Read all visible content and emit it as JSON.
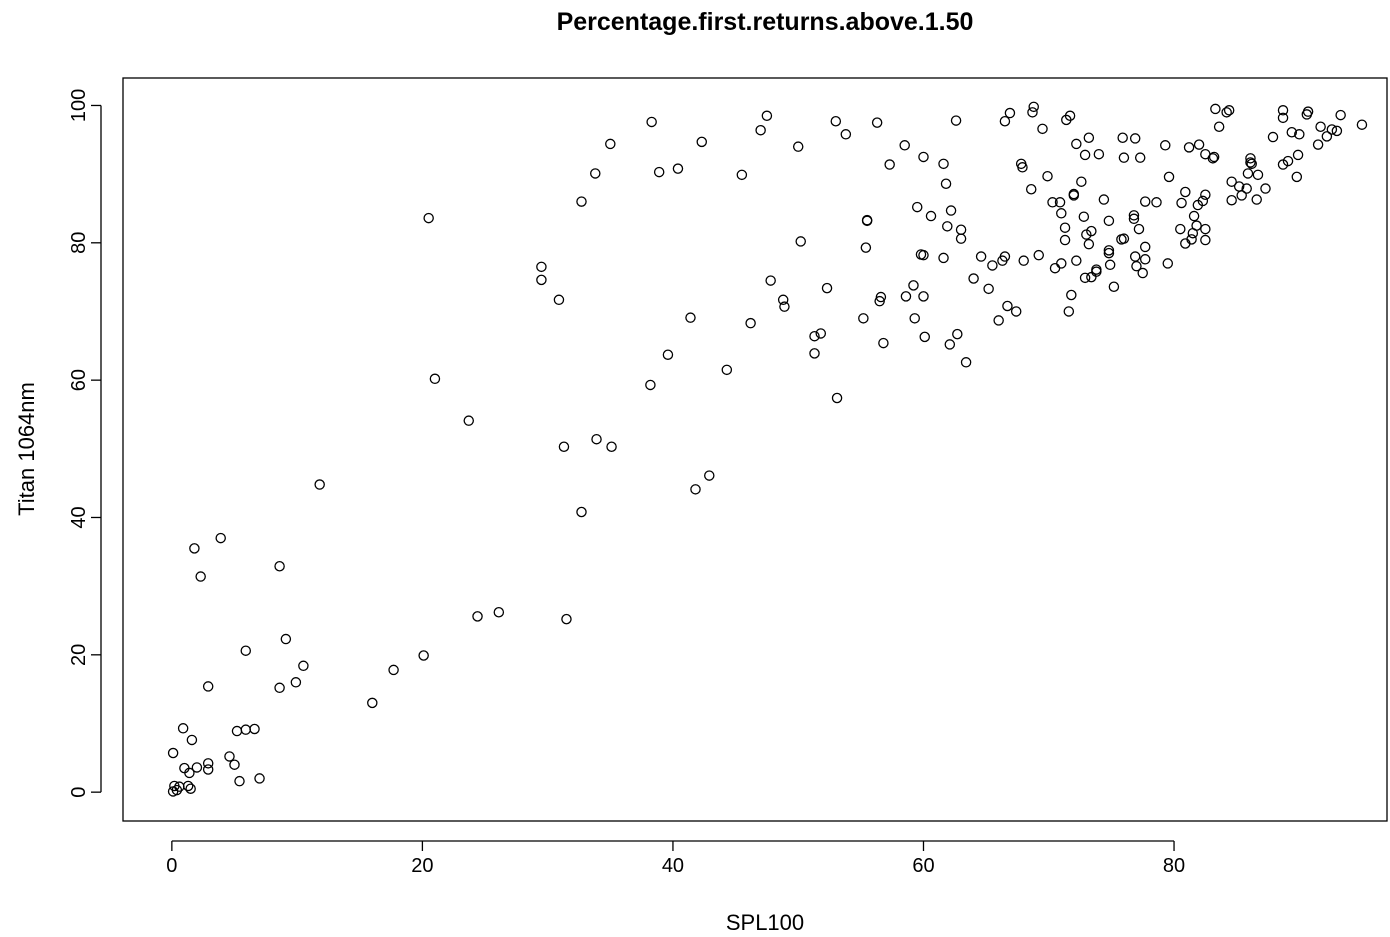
{
  "chart_data": {
    "type": "scatter",
    "title": "Percentage.first.returns.above.1.50",
    "xlabel": "SPL100",
    "ylabel": "Titan 1064nm",
    "xlim": [
      -3.9,
      97
    ],
    "ylim": [
      -4.2,
      104
    ],
    "x_ticks": [
      "0",
      "20",
      "40",
      "60",
      "80"
    ],
    "y_ticks": [
      "0",
      "20",
      "40",
      "60",
      "80",
      "100"
    ],
    "grid": false,
    "legend": "none",
    "marker": "open-circle",
    "points": [
      [
        0.1,
        0.1
      ],
      [
        0.4,
        0.3
      ],
      [
        0.6,
        0.8
      ],
      [
        0.2,
        0.9
      ],
      [
        1.3,
        0.9
      ],
      [
        1.5,
        0.5
      ],
      [
        1.0,
        3.5
      ],
      [
        1.4,
        2.8
      ],
      [
        2.0,
        3.6
      ],
      [
        2.9,
        4.2
      ],
      [
        2.9,
        3.3
      ],
      [
        4.6,
        5.2
      ],
      [
        5.0,
        4.0
      ],
      [
        5.4,
        1.6
      ],
      [
        7.0,
        2.0
      ],
      [
        0.1,
        5.7
      ],
      [
        0.9,
        9.3
      ],
      [
        1.6,
        7.6
      ],
      [
        5.2,
        8.9
      ],
      [
        5.9,
        9.1
      ],
      [
        6.6,
        9.2
      ],
      [
        2.9,
        15.4
      ],
      [
        5.9,
        20.6
      ],
      [
        8.6,
        15.2
      ],
      [
        9.9,
        16.0
      ],
      [
        9.1,
        22.3
      ],
      [
        10.5,
        18.4
      ],
      [
        1.8,
        35.5
      ],
      [
        2.3,
        31.4
      ],
      [
        3.9,
        37.0
      ],
      [
        8.6,
        32.9
      ],
      [
        11.8,
        44.8
      ],
      [
        16.0,
        13.0
      ],
      [
        17.7,
        17.8
      ],
      [
        20.1,
        19.9
      ],
      [
        20.5,
        83.6
      ],
      [
        21.0,
        60.2
      ],
      [
        23.7,
        54.1
      ],
      [
        24.4,
        25.6
      ],
      [
        26.1,
        26.2
      ],
      [
        29.5,
        76.5
      ],
      [
        29.5,
        74.6
      ],
      [
        30.9,
        71.7
      ],
      [
        31.3,
        50.3
      ],
      [
        31.5,
        25.2
      ],
      [
        32.7,
        86.0
      ],
      [
        32.7,
        40.8
      ],
      [
        33.8,
        90.1
      ],
      [
        33.9,
        51.4
      ],
      [
        35.0,
        94.4
      ],
      [
        35.1,
        50.3
      ],
      [
        38.3,
        97.6
      ],
      [
        38.2,
        59.3
      ],
      [
        38.9,
        90.3
      ],
      [
        39.6,
        63.7
      ],
      [
        40.4,
        90.8
      ],
      [
        41.4,
        69.1
      ],
      [
        41.8,
        44.1
      ],
      [
        42.3,
        94.7
      ],
      [
        42.9,
        46.1
      ],
      [
        44.3,
        61.5
      ],
      [
        45.5,
        89.9
      ],
      [
        46.2,
        68.3
      ],
      [
        47.0,
        96.4
      ],
      [
        47.5,
        98.5
      ],
      [
        47.8,
        74.5
      ],
      [
        48.8,
        71.7
      ],
      [
        48.9,
        70.7
      ],
      [
        50.0,
        94.0
      ],
      [
        50.2,
        80.2
      ],
      [
        51.3,
        66.4
      ],
      [
        51.3,
        63.9
      ],
      [
        51.8,
        66.8
      ],
      [
        52.3,
        73.4
      ],
      [
        53.0,
        97.7
      ],
      [
        53.1,
        57.4
      ],
      [
        53.8,
        95.8
      ],
      [
        55.2,
        69.0
      ],
      [
        55.4,
        79.3
      ],
      [
        55.5,
        83.2
      ],
      [
        55.5,
        83.3
      ],
      [
        56.3,
        97.5
      ],
      [
        56.5,
        71.5
      ],
      [
        56.6,
        72.1
      ],
      [
        56.8,
        65.4
      ],
      [
        57.3,
        91.4
      ],
      [
        58.5,
        94.2
      ],
      [
        58.6,
        72.2
      ],
      [
        59.2,
        73.8
      ],
      [
        59.3,
        69.0
      ],
      [
        59.5,
        85.2
      ],
      [
        59.8,
        78.3
      ],
      [
        60.0,
        78.2
      ],
      [
        60.0,
        92.5
      ],
      [
        60.0,
        72.2
      ],
      [
        60.1,
        66.3
      ],
      [
        60.6,
        83.9
      ],
      [
        61.6,
        91.5
      ],
      [
        61.8,
        88.6
      ],
      [
        61.6,
        77.8
      ],
      [
        61.9,
        82.4
      ],
      [
        62.1,
        65.2
      ],
      [
        62.2,
        84.7
      ],
      [
        62.6,
        97.8
      ],
      [
        62.7,
        66.7
      ],
      [
        63.0,
        81.9
      ],
      [
        63.0,
        80.6
      ],
      [
        63.4,
        62.6
      ],
      [
        64.0,
        74.8
      ],
      [
        64.6,
        78.0
      ],
      [
        65.2,
        73.3
      ],
      [
        65.5,
        76.7
      ],
      [
        66.0,
        68.7
      ],
      [
        66.3,
        77.4
      ],
      [
        66.5,
        97.7
      ],
      [
        66.5,
        78.0
      ],
      [
        66.7,
        70.8
      ],
      [
        66.9,
        98.9
      ],
      [
        67.4,
        70.0
      ],
      [
        67.8,
        91.5
      ],
      [
        67.9,
        91.0
      ],
      [
        68.0,
        77.4
      ],
      [
        68.6,
        87.8
      ],
      [
        68.7,
        99.0
      ],
      [
        68.8,
        99.8
      ],
      [
        69.2,
        78.2
      ],
      [
        69.5,
        96.6
      ],
      [
        69.9,
        89.7
      ],
      [
        70.3,
        85.9
      ],
      [
        70.5,
        76.3
      ],
      [
        70.9,
        85.9
      ],
      [
        71.0,
        84.3
      ],
      [
        71.0,
        77.0
      ],
      [
        71.3,
        80.4
      ],
      [
        71.3,
        82.2
      ],
      [
        71.4,
        97.9
      ],
      [
        71.6,
        70.0
      ],
      [
        71.7,
        98.5
      ],
      [
        71.8,
        72.4
      ],
      [
        72.0,
        87.1
      ],
      [
        72.0,
        86.9
      ],
      [
        72.2,
        77.4
      ],
      [
        72.2,
        94.4
      ],
      [
        72.6,
        88.9
      ],
      [
        72.8,
        83.8
      ],
      [
        72.9,
        92.8
      ],
      [
        72.9,
        74.9
      ],
      [
        73.0,
        81.2
      ],
      [
        73.2,
        79.8
      ],
      [
        73.2,
        95.3
      ],
      [
        73.4,
        81.7
      ],
      [
        73.4,
        75.0
      ],
      [
        73.8,
        76.1
      ],
      [
        73.8,
        75.8
      ],
      [
        74.0,
        92.9
      ],
      [
        74.4,
        86.3
      ],
      [
        74.8,
        83.2
      ],
      [
        74.8,
        78.9
      ],
      [
        74.8,
        78.5
      ],
      [
        74.9,
        76.8
      ],
      [
        75.2,
        73.6
      ],
      [
        75.8,
        80.5
      ],
      [
        75.9,
        95.3
      ],
      [
        76.0,
        92.4
      ],
      [
        76.0,
        80.6
      ],
      [
        76.8,
        84.0
      ],
      [
        76.8,
        83.5
      ],
      [
        76.9,
        78.0
      ],
      [
        76.9,
        95.2
      ],
      [
        77.0,
        76.6
      ],
      [
        77.2,
        82.0
      ],
      [
        77.3,
        92.4
      ],
      [
        77.5,
        75.6
      ],
      [
        77.7,
        86.0
      ],
      [
        77.7,
        77.6
      ],
      [
        77.7,
        79.4
      ],
      [
        78.6,
        85.9
      ],
      [
        79.3,
        94.2
      ],
      [
        79.5,
        77.0
      ],
      [
        79.6,
        89.6
      ],
      [
        80.5,
        82.0
      ],
      [
        80.6,
        85.8
      ],
      [
        80.9,
        79.9
      ],
      [
        80.9,
        87.4
      ],
      [
        81.2,
        93.9
      ],
      [
        81.4,
        80.5
      ],
      [
        81.5,
        81.4
      ],
      [
        81.6,
        83.9
      ],
      [
        81.8,
        82.5
      ],
      [
        81.9,
        85.5
      ],
      [
        82.0,
        94.3
      ],
      [
        82.3,
        86.1
      ],
      [
        82.5,
        92.9
      ],
      [
        82.5,
        82.0
      ],
      [
        82.5,
        80.4
      ],
      [
        82.5,
        87.0
      ],
      [
        83.1,
        92.3
      ],
      [
        83.2,
        92.5
      ],
      [
        83.3,
        99.5
      ],
      [
        83.6,
        96.9
      ],
      [
        84.2,
        99.0
      ],
      [
        84.4,
        99.3
      ],
      [
        84.6,
        86.2
      ],
      [
        84.6,
        88.9
      ],
      [
        85.2,
        88.2
      ],
      [
        85.4,
        86.9
      ],
      [
        85.8,
        87.9
      ],
      [
        85.9,
        90.1
      ],
      [
        86.1,
        92.3
      ],
      [
        86.1,
        91.7
      ],
      [
        86.2,
        91.5
      ],
      [
        86.6,
        86.3
      ],
      [
        86.7,
        89.9
      ],
      [
        87.3,
        87.9
      ],
      [
        87.9,
        95.4
      ],
      [
        88.7,
        99.3
      ],
      [
        88.7,
        98.2
      ],
      [
        88.7,
        91.4
      ],
      [
        89.1,
        91.9
      ],
      [
        89.4,
        96.1
      ],
      [
        89.8,
        89.6
      ],
      [
        89.9,
        92.8
      ],
      [
        90.0,
        95.8
      ],
      [
        90.6,
        98.7
      ],
      [
        90.7,
        99.1
      ],
      [
        91.5,
        94.3
      ],
      [
        91.7,
        96.9
      ],
      [
        92.2,
        95.5
      ],
      [
        92.6,
        96.5
      ],
      [
        93.0,
        96.3
      ],
      [
        93.3,
        98.6
      ],
      [
        95.0,
        97.2
      ]
    ]
  }
}
